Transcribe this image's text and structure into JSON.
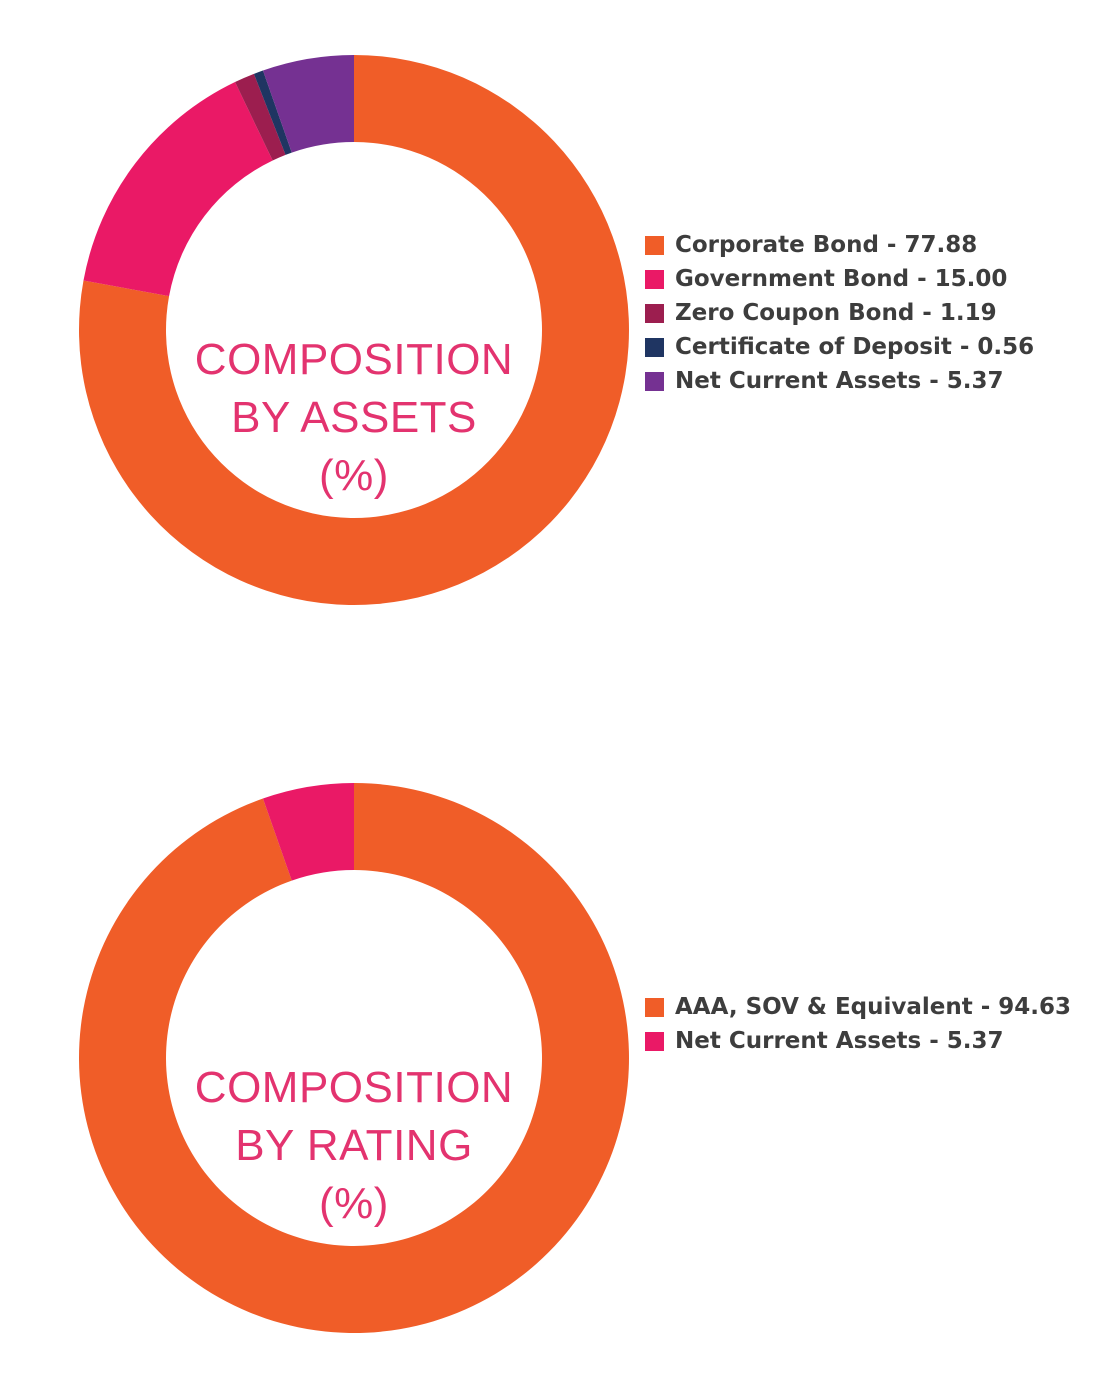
{
  "chart_data": [
    {
      "type": "pie",
      "variant": "donut",
      "center_title": [
        "COMPOSITION",
        "BY ASSETS",
        "(%)"
      ],
      "title_color": "#e3336f",
      "legend_position": "right",
      "slices": [
        {
          "label": "Corporate Bond",
          "value": 77.88,
          "color": "#f05d28",
          "legend_text": "Corporate Bond - 77.88"
        },
        {
          "label": "Government Bond",
          "value": 15.0,
          "color": "#ea1966",
          "legend_text": "Government Bond - 15.00"
        },
        {
          "label": "Zero Coupon Bond",
          "value": 1.19,
          "color": "#9c1e4f",
          "legend_text": "Zero Coupon Bond - 1.19"
        },
        {
          "label": "Certificate of Deposit",
          "value": 0.56,
          "color": "#1f3562",
          "legend_text": "Certificate of Deposit - 0.56"
        },
        {
          "label": "Net Current Assets",
          "value": 5.37,
          "color": "#753192",
          "legend_text": "Net Current Assets - 5.37"
        }
      ]
    },
    {
      "type": "pie",
      "variant": "donut",
      "center_title": [
        "COMPOSITION",
        "BY RATING",
        "(%)"
      ],
      "title_color": "#e3336f",
      "legend_position": "right",
      "slices": [
        {
          "label": "AAA, SOV & Equivalent",
          "value": 94.63,
          "color": "#f05d28",
          "legend_text": "AAA, SOV & Equivalent - 94.63"
        },
        {
          "label": "Net Current Assets",
          "value": 5.37,
          "color": "#ea1966",
          "legend_text": "Net Current Assets - 5.37"
        }
      ]
    }
  ]
}
